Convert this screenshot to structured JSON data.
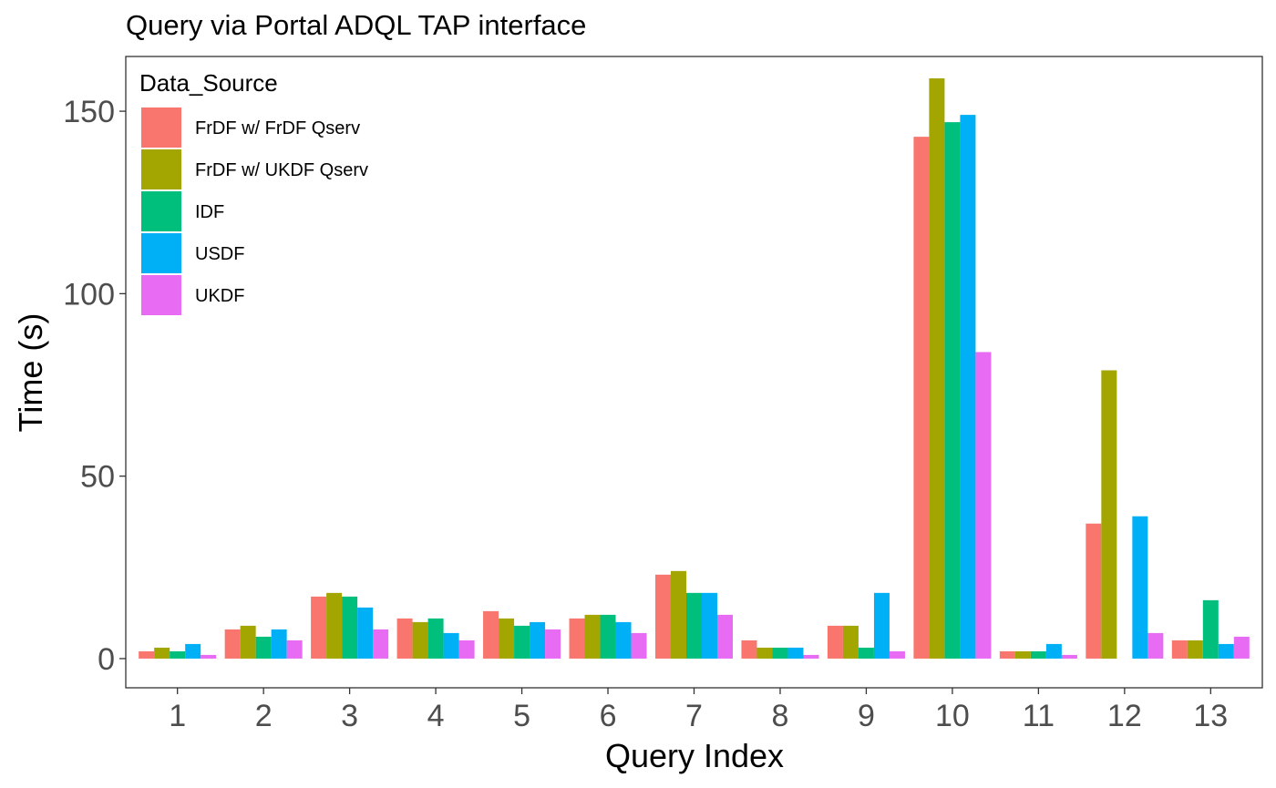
{
  "chart_data": {
    "type": "bar",
    "title": "Query via Portal ADQL TAP interface",
    "xlabel": "Query Index",
    "ylabel": "Time (s)",
    "categories": [
      "1",
      "2",
      "3",
      "4",
      "5",
      "6",
      "7",
      "8",
      "9",
      "10",
      "11",
      "12",
      "13"
    ],
    "ylim": [
      -8,
      165
    ],
    "yticks": [
      0,
      50,
      100,
      150
    ],
    "grid": false,
    "legend": {
      "title": "Data_Source",
      "position": "top-left"
    },
    "series": [
      {
        "name": "FrDF w/ FrDF Qserv",
        "color": "#F8766D",
        "values": [
          2,
          8,
          17,
          11,
          13,
          11,
          23,
          5,
          9,
          143,
          2,
          37,
          5
        ]
      },
      {
        "name": "FrDF w/ UKDF Qserv",
        "color": "#A3A500",
        "values": [
          3,
          9,
          18,
          10,
          11,
          12,
          24,
          3,
          9,
          159,
          2,
          79,
          5
        ]
      },
      {
        "name": "IDF",
        "color": "#00BF7D",
        "values": [
          2,
          6,
          17,
          11,
          9,
          12,
          18,
          3,
          3,
          147,
          2,
          0,
          16
        ]
      },
      {
        "name": "USDF",
        "color": "#00B0F6",
        "values": [
          4,
          8,
          14,
          7,
          10,
          10,
          18,
          3,
          18,
          149,
          4,
          39,
          4
        ]
      },
      {
        "name": "UKDF",
        "color": "#E76BF3",
        "values": [
          1,
          5,
          8,
          5,
          8,
          7,
          12,
          1,
          2,
          84,
          1,
          7,
          6
        ]
      }
    ]
  }
}
